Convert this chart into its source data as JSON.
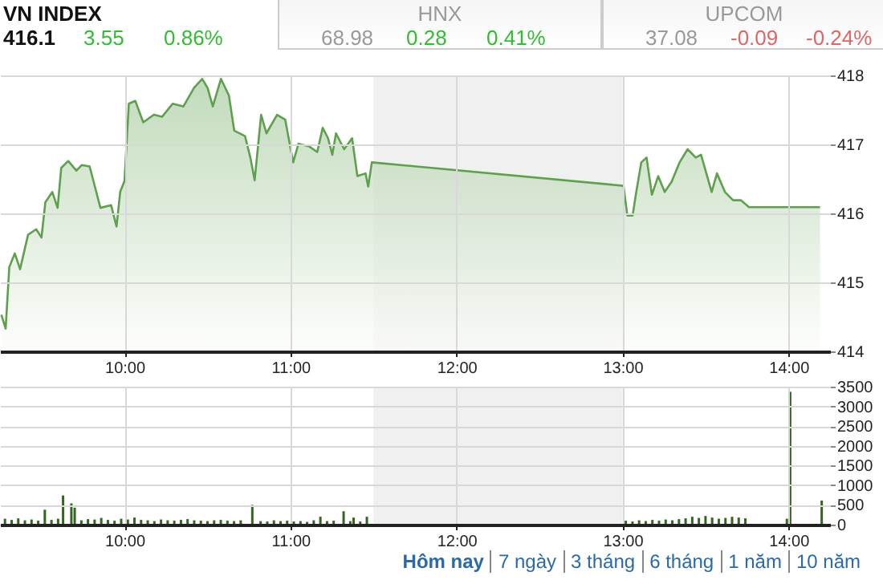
{
  "chart_data": [
    {
      "type": "other",
      "categories": [
        "VN INDEX",
        "HNX",
        "UPCOM"
      ],
      "series": [
        {
          "values": [
            416.1,
            68.98,
            37.08
          ],
          "value_labels": [
            "416.1",
            "68.98",
            "37.08"
          ],
          "colors": [
            "#111111",
            "#999999",
            "#999999"
          ]
        },
        {
          "values": [
            3.55,
            0.28,
            -0.09
          ],
          "value_labels": [
            "3.55",
            "0.28",
            "-0.09"
          ],
          "colors": [
            "#33bb33",
            "#33bb33",
            "#e06666"
          ]
        },
        {
          "values": [
            0.86,
            0.41,
            -0.24
          ],
          "value_labels": [
            "0.86%",
            "0.41%",
            "-0.24%"
          ],
          "colors": [
            "#33bb33",
            "#33bb33",
            "#e06666"
          ]
        }
      ]
    },
    {
      "type": "area",
      "x": [
        9.258,
        9.284,
        9.306,
        9.339,
        9.371,
        9.419,
        9.468,
        9.5,
        9.523,
        9.565,
        9.597,
        9.619,
        9.661,
        9.71,
        9.742,
        9.79,
        9.855,
        9.919,
        9.952,
        9.974,
        10.0,
        10.026,
        10.065,
        10.113,
        10.177,
        10.226,
        10.29,
        10.355,
        10.419,
        10.468,
        10.5,
        10.532,
        10.581,
        10.629,
        10.661,
        10.726,
        10.758,
        10.784,
        10.823,
        10.855,
        10.919,
        10.968,
        11.016,
        11.048,
        11.113,
        11.161,
        11.194,
        11.226,
        11.252,
        11.274,
        11.323,
        11.371,
        11.403,
        11.452,
        11.468,
        11.49,
        13.006,
        13.029,
        13.061,
        13.08,
        13.113,
        13.145,
        13.177,
        13.215,
        13.254,
        13.296,
        13.344,
        13.392,
        13.441,
        13.473,
        13.537,
        13.569,
        13.617,
        13.666,
        13.714,
        13.762,
        14.19
      ],
      "series": [
        {
          "color": "#5fa04e",
          "values": [
            414.53,
            414.33,
            415.22,
            415.42,
            415.19,
            415.69,
            415.77,
            415.65,
            416.16,
            416.31,
            416.08,
            416.66,
            416.76,
            416.62,
            416.7,
            416.68,
            416.08,
            416.12,
            415.81,
            416.31,
            416.47,
            417.59,
            417.63,
            417.32,
            417.43,
            417.4,
            417.59,
            417.55,
            417.82,
            417.95,
            417.82,
            417.55,
            417.95,
            417.71,
            417.2,
            417.12,
            416.81,
            416.48,
            417.43,
            417.16,
            417.43,
            417.36,
            416.74,
            417.01,
            416.97,
            416.89,
            417.24,
            417.09,
            416.85,
            417.16,
            416.93,
            417.09,
            416.54,
            416.58,
            416.39,
            416.74,
            416.4,
            415.97,
            415.97,
            416.27,
            416.74,
            416.81,
            416.27,
            416.54,
            416.31,
            416.46,
            416.74,
            416.93,
            416.81,
            416.85,
            416.31,
            416.58,
            416.31,
            416.19,
            416.19,
            416.09,
            416.09
          ]
        }
      ],
      "xlim": [
        9.25,
        14.25
      ],
      "xticks": [
        {
          "value": 10,
          "label": "10:00"
        },
        {
          "value": 11,
          "label": "11:00"
        },
        {
          "value": 12,
          "label": "12:00"
        },
        {
          "value": 13,
          "label": "13:00"
        },
        {
          "value": 14,
          "label": "14:00"
        }
      ],
      "ylim": [
        414,
        418
      ],
      "yticks": [
        414,
        415,
        416,
        417,
        418
      ],
      "grid": true,
      "bands": [
        {
          "axis": "x",
          "from": 11.5,
          "to": 13,
          "color": "#f0f0f0"
        }
      ]
    },
    {
      "type": "bar",
      "x": [
        9.28,
        9.32,
        9.36,
        9.4,
        9.44,
        9.48,
        9.52,
        9.56,
        9.6,
        9.63,
        9.68,
        9.7,
        9.74,
        9.78,
        9.82,
        9.86,
        9.9,
        9.94,
        9.98,
        10.02,
        10.06,
        10.1,
        10.14,
        10.18,
        10.22,
        10.26,
        10.3,
        10.34,
        10.38,
        10.42,
        10.46,
        10.5,
        10.54,
        10.58,
        10.62,
        10.66,
        10.7,
        10.77,
        10.82,
        10.86,
        10.9,
        10.94,
        10.98,
        11.02,
        11.06,
        11.1,
        11.14,
        11.18,
        11.22,
        11.26,
        11.32,
        11.36,
        11.38,
        11.42,
        11.46,
        13.02,
        13.06,
        13.1,
        13.14,
        13.18,
        13.22,
        13.26,
        13.3,
        13.34,
        13.38,
        13.42,
        13.46,
        13.5,
        13.54,
        13.58,
        13.62,
        13.66,
        13.7,
        13.74,
        13.99,
        14.01,
        14.2
      ],
      "series": [
        {
          "color": "#336622",
          "values": [
            150,
            120,
            160,
            110,
            130,
            100,
            380,
            120,
            150,
            740,
            540,
            430,
            110,
            140,
            130,
            170,
            120,
            100,
            150,
            130,
            180,
            120,
            110,
            90,
            130,
            110,
            100,
            120,
            140,
            110,
            100,
            90,
            110,
            120,
            100,
            90,
            110,
            500,
            90,
            80,
            110,
            90,
            100,
            80,
            90,
            70,
            110,
            200,
            90,
            100,
            340,
            90,
            180,
            80,
            200,
            100,
            80,
            110,
            90,
            120,
            100,
            130,
            110,
            140,
            160,
            200,
            170,
            220,
            180,
            150,
            170,
            200,
            180,
            160,
            150,
            3370,
            610
          ]
        }
      ],
      "xlim": [
        9.25,
        14.25
      ],
      "xticks": [
        {
          "value": 10,
          "label": "10:00"
        },
        {
          "value": 11,
          "label": "11:00"
        },
        {
          "value": 12,
          "label": "12:00"
        },
        {
          "value": 13,
          "label": "13:00"
        },
        {
          "value": 14,
          "label": "14:00"
        }
      ],
      "ylim": [
        0,
        3500
      ],
      "yticks": [
        0,
        500,
        1000,
        1500,
        2000,
        2500,
        3000,
        3500
      ],
      "grid": true,
      "bands": [
        {
          "axis": "x",
          "from": 11.5,
          "to": 13,
          "color": "#f0f0f0"
        }
      ],
      "annotations": [
        "Hôm nay",
        "7 ngày",
        "3 tháng",
        "6 tháng",
        "1 năm",
        "10 năm"
      ]
    }
  ]
}
